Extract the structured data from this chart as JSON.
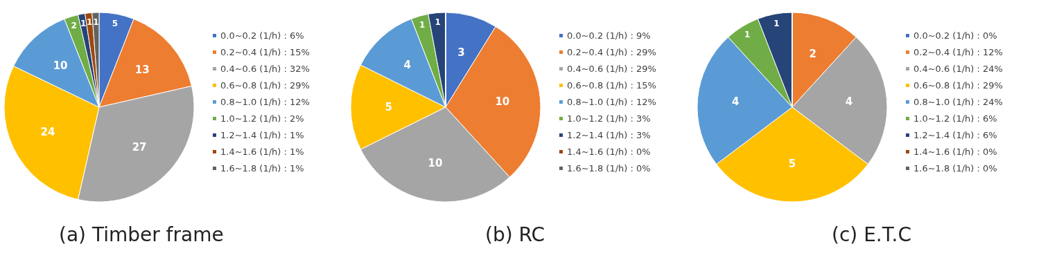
{
  "chart_data": [
    {
      "type": "pie",
      "title": "(a) Timber frame",
      "legend": "right",
      "data_labels": true,
      "categories": [
        "0.0~0.2 (1/h) : 6%",
        "0.2~0.4 (1/h) : 15%",
        "0.4~0.6 (1/h) : 32%",
        "0.6~0.8 (1/h) : 29%",
        "0.8~1.0 (1/h) : 12%",
        "1.0~1.2 (1/h) : 2%",
        "1.2~1.4 (1/h) : 1%",
        "1.4~1.6 (1/h) : 1%",
        "1.6~1.8 (1/h) : 1%"
      ],
      "values": [
        5,
        13,
        27,
        24,
        10,
        2,
        1,
        1,
        1
      ],
      "colors": [
        "#4472c4",
        "#ed7d31",
        "#a5a5a5",
        "#ffc000",
        "#5b9bd5",
        "#70ad47",
        "#264478",
        "#9e480e",
        "#636363"
      ]
    },
    {
      "type": "pie",
      "title": "(b) RC",
      "legend": "right",
      "data_labels": true,
      "categories": [
        "0.0~0.2 (1/h) : 9%",
        "0.2~0.4 (1/h) : 29%",
        "0.4~0.6 (1/h) : 29%",
        "0.6~0.8 (1/h) : 15%",
        "0.8~1.0 (1/h) : 12%",
        "1.0~1.2 (1/h) : 3%",
        "1.2~1.4 (1/h) : 3%",
        "1.4~1.6 (1/h) : 0%",
        "1.6~1.8 (1/h) : 0%"
      ],
      "values": [
        3,
        10,
        10,
        5,
        4,
        1,
        1,
        0,
        0
      ],
      "colors": [
        "#4472c4",
        "#ed7d31",
        "#a5a5a5",
        "#ffc000",
        "#5b9bd5",
        "#70ad47",
        "#264478",
        "#9e480e",
        "#636363"
      ]
    },
    {
      "type": "pie",
      "title": "(c) E.T.C",
      "legend": "right",
      "data_labels": true,
      "categories": [
        "0.0~0.2 (1/h) : 0%",
        "0.2~0.4 (1/h) : 12%",
        "0.4~0.6 (1/h) : 24%",
        "0.6~0.8 (1/h) : 29%",
        "0.8~1.0 (1/h) : 24%",
        "1.0~1.2 (1/h) : 6%",
        "1.2~1.4 (1/h) : 6%",
        "1.4~1.6 (1/h) : 0%",
        "1.6~1.8 (1/h) : 0%"
      ],
      "values": [
        0,
        2,
        4,
        5,
        4,
        1,
        1,
        0,
        0
      ],
      "colors": [
        "#4472c4",
        "#ed7d31",
        "#a5a5a5",
        "#ffc000",
        "#5b9bd5",
        "#70ad47",
        "#264478",
        "#9e480e",
        "#636363"
      ]
    }
  ]
}
